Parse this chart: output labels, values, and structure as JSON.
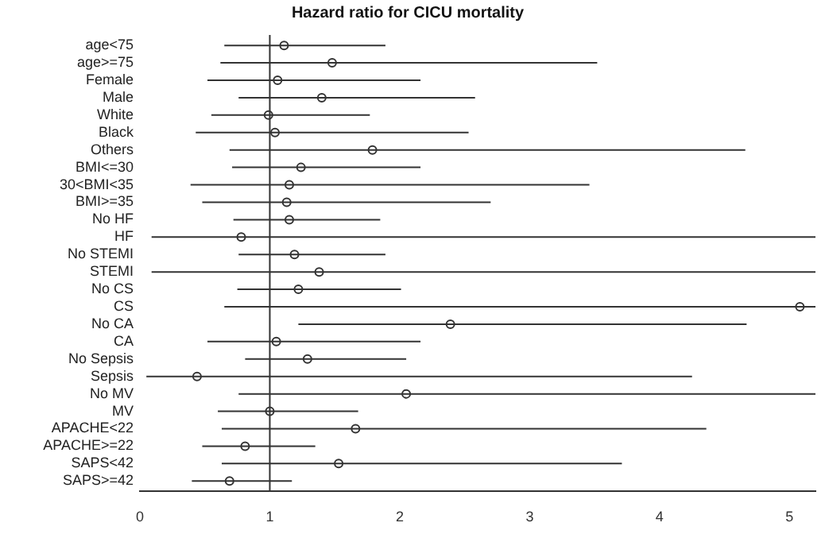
{
  "chart_data": {
    "type": "scatter",
    "orientation": "horizontal",
    "title": "Hazard ratio for CICU mortality",
    "categories": [
      "age<75",
      "age>=75",
      "Female",
      "Male",
      "White",
      "Black",
      "Others",
      "BMI<=30",
      "30<BMI<35",
      "BMI>=35",
      "No HF",
      "HF",
      "No STEMI",
      "STEMI",
      "No CS",
      "CS",
      "No CA",
      "CA",
      "No Sepsis",
      "Sepsis",
      "No MV",
      "MV",
      "APACHE<22",
      "APACHE>=22",
      "SAPS<42",
      "SAPS>=42"
    ],
    "values": [
      1.11,
      1.48,
      1.06,
      1.4,
      0.99,
      1.04,
      1.79,
      1.24,
      1.15,
      1.13,
      1.15,
      0.78,
      1.19,
      1.38,
      1.22,
      5.08,
      2.39,
      1.05,
      1.29,
      0.44,
      2.05,
      1.0,
      1.66,
      0.81,
      1.53,
      0.69
    ],
    "errors": [
      [
        0.65,
        1.89
      ],
      [
        0.62,
        3.52
      ],
      [
        0.52,
        2.16
      ],
      [
        0.76,
        2.58
      ],
      [
        0.55,
        1.77
      ],
      [
        0.43,
        2.53
      ],
      [
        0.69,
        4.66
      ],
      [
        0.71,
        2.16
      ],
      [
        0.39,
        3.46
      ],
      [
        0.48,
        2.7
      ],
      [
        0.72,
        1.85
      ],
      [
        0.09,
        5.2
      ],
      [
        0.76,
        1.89
      ],
      [
        0.09,
        5.2
      ],
      [
        0.75,
        2.01
      ],
      [
        0.65,
        5.2
      ],
      [
        1.22,
        4.67
      ],
      [
        0.52,
        2.16
      ],
      [
        0.81,
        2.05
      ],
      [
        0.05,
        4.25
      ],
      [
        0.76,
        5.2
      ],
      [
        0.6,
        1.68
      ],
      [
        0.63,
        4.36
      ],
      [
        0.48,
        1.35
      ],
      [
        0.63,
        3.71
      ],
      [
        0.4,
        1.17
      ]
    ],
    "color": "#333333",
    "marker": "circle",
    "xlim": [
      0,
      5.2
    ],
    "xticks": [
      0,
      1,
      2,
      3,
      4,
      5
    ],
    "ref_lines": [
      {
        "axis": "x",
        "value": 1,
        "color": "#333333"
      }
    ],
    "grid": false,
    "legend": false
  }
}
